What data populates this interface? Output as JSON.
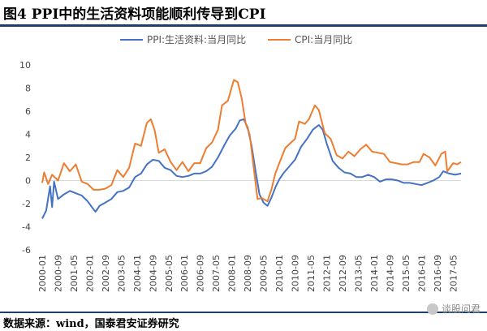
{
  "header": {
    "title": "图4   PPI中的生活资料项能顺利传导到CPI"
  },
  "footer": {
    "source": "数据来源：wind，国泰君安证券研究",
    "watermark": "谈股问君"
  },
  "colors": {
    "ppi": "#4472c4",
    "cpi": "#ed7d31",
    "rule": "#1f3f6b"
  },
  "chart_data": {
    "type": "line",
    "title": "",
    "xlabel": "",
    "ylabel": "",
    "ylim": [
      -6,
      10
    ],
    "yticks": [
      -6,
      -4,
      -2,
      0,
      2,
      4,
      6,
      8,
      10
    ],
    "xlim": [
      "2000-01",
      "2017-09"
    ],
    "xticks": [
      "2000-01",
      "2000-09",
      "2001-05",
      "2002-01",
      "2002-09",
      "2003-05",
      "2004-01",
      "2004-09",
      "2005-05",
      "2006-01",
      "2006-09",
      "2007-05",
      "2008-01",
      "2008-09",
      "2009-05",
      "2010-01",
      "2010-09",
      "2011-05",
      "2012-01",
      "2012-09",
      "2013-05",
      "2014-01",
      "2014-09",
      "2015-05",
      "2016-01",
      "2016-09",
      "2017-05"
    ],
    "legend": "top",
    "grid": false,
    "series": [
      {
        "name": "PPI:生活资料:当月同比",
        "color": "#4472c4",
        "points": [
          [
            "2000-01",
            -3.3
          ],
          [
            "2000-03",
            -2.6
          ],
          [
            "2000-05",
            -0.5
          ],
          [
            "2000-06",
            -2.3
          ],
          [
            "2000-07",
            -0.1
          ],
          [
            "2000-09",
            -1.6
          ],
          [
            "2000-12",
            -1.2
          ],
          [
            "2001-03",
            -0.9
          ],
          [
            "2001-06",
            -1.1
          ],
          [
            "2001-09",
            -1.3
          ],
          [
            "2001-12",
            -1.8
          ],
          [
            "2002-03",
            -2.5
          ],
          [
            "2002-04",
            -2.7
          ],
          [
            "2002-06",
            -2.2
          ],
          [
            "2002-09",
            -1.9
          ],
          [
            "2002-12",
            -1.6
          ],
          [
            "2003-03",
            -1.0
          ],
          [
            "2003-06",
            -0.9
          ],
          [
            "2003-09",
            -0.6
          ],
          [
            "2003-12",
            0.3
          ],
          [
            "2004-03",
            0.6
          ],
          [
            "2004-06",
            1.4
          ],
          [
            "2004-09",
            1.8
          ],
          [
            "2004-12",
            1.7
          ],
          [
            "2005-03",
            1.1
          ],
          [
            "2005-06",
            0.9
          ],
          [
            "2005-09",
            0.4
          ],
          [
            "2005-12",
            0.3
          ],
          [
            "2006-03",
            0.4
          ],
          [
            "2006-06",
            0.6
          ],
          [
            "2006-09",
            0.6
          ],
          [
            "2006-12",
            0.8
          ],
          [
            "2007-03",
            1.2
          ],
          [
            "2007-06",
            2.0
          ],
          [
            "2007-09",
            3.0
          ],
          [
            "2007-12",
            3.9
          ],
          [
            "2008-03",
            4.5
          ],
          [
            "2008-05",
            5.2
          ],
          [
            "2008-07",
            5.3
          ],
          [
            "2008-09",
            4.6
          ],
          [
            "2008-11",
            3.0
          ],
          [
            "2009-01",
            0.8
          ],
          [
            "2009-03",
            -1.2
          ],
          [
            "2009-05",
            -1.9
          ],
          [
            "2009-07",
            -2.2
          ],
          [
            "2009-09",
            -1.5
          ],
          [
            "2009-11",
            -0.6
          ],
          [
            "2010-01",
            0.1
          ],
          [
            "2010-03",
            0.6
          ],
          [
            "2010-06",
            1.2
          ],
          [
            "2010-09",
            1.8
          ],
          [
            "2010-12",
            2.9
          ],
          [
            "2011-03",
            3.6
          ],
          [
            "2011-06",
            4.4
          ],
          [
            "2011-09",
            4.8
          ],
          [
            "2011-11",
            4.4
          ],
          [
            "2012-01",
            3.2
          ],
          [
            "2012-04",
            1.7
          ],
          [
            "2012-07",
            1.1
          ],
          [
            "2012-10",
            0.7
          ],
          [
            "2013-01",
            0.6
          ],
          [
            "2013-04",
            0.3
          ],
          [
            "2013-07",
            0.3
          ],
          [
            "2013-10",
            0.5
          ],
          [
            "2014-01",
            0.3
          ],
          [
            "2014-04",
            -0.1
          ],
          [
            "2014-07",
            0.1
          ],
          [
            "2014-10",
            0.1
          ],
          [
            "2015-01",
            0.0
          ],
          [
            "2015-04",
            -0.2
          ],
          [
            "2015-07",
            -0.2
          ],
          [
            "2015-10",
            -0.3
          ],
          [
            "2016-01",
            -0.4
          ],
          [
            "2016-04",
            -0.2
          ],
          [
            "2016-07",
            0.0
          ],
          [
            "2016-10",
            0.3
          ],
          [
            "2016-12",
            0.8
          ],
          [
            "2017-03",
            0.6
          ],
          [
            "2017-06",
            0.5
          ],
          [
            "2017-09",
            0.6
          ]
        ]
      },
      {
        "name": "CPI:当月同比",
        "color": "#ed7d31",
        "points": [
          [
            "2000-01",
            -0.2
          ],
          [
            "2000-02",
            0.7
          ],
          [
            "2000-04",
            -0.3
          ],
          [
            "2000-06",
            0.5
          ],
          [
            "2000-09",
            0.0
          ],
          [
            "2000-12",
            1.5
          ],
          [
            "2001-03",
            0.8
          ],
          [
            "2001-06",
            1.4
          ],
          [
            "2001-09",
            -0.1
          ],
          [
            "2001-12",
            -0.3
          ],
          [
            "2002-03",
            -0.8
          ],
          [
            "2002-06",
            -0.8
          ],
          [
            "2002-09",
            -0.7
          ],
          [
            "2002-12",
            -0.4
          ],
          [
            "2003-03",
            0.9
          ],
          [
            "2003-06",
            0.3
          ],
          [
            "2003-09",
            1.1
          ],
          [
            "2003-12",
            3.2
          ],
          [
            "2004-03",
            3.0
          ],
          [
            "2004-06",
            5.0
          ],
          [
            "2004-08",
            5.3
          ],
          [
            "2004-10",
            4.3
          ],
          [
            "2004-12",
            2.4
          ],
          [
            "2005-03",
            2.7
          ],
          [
            "2005-06",
            1.6
          ],
          [
            "2005-09",
            0.9
          ],
          [
            "2005-12",
            1.6
          ],
          [
            "2006-03",
            0.8
          ],
          [
            "2006-06",
            1.5
          ],
          [
            "2006-09",
            1.5
          ],
          [
            "2006-12",
            2.8
          ],
          [
            "2007-03",
            3.3
          ],
          [
            "2007-06",
            4.4
          ],
          [
            "2007-08",
            6.5
          ],
          [
            "2007-11",
            6.9
          ],
          [
            "2008-02",
            8.7
          ],
          [
            "2008-04",
            8.5
          ],
          [
            "2008-06",
            7.1
          ],
          [
            "2008-08",
            4.9
          ],
          [
            "2008-10",
            4.0
          ],
          [
            "2008-12",
            1.2
          ],
          [
            "2009-02",
            -1.6
          ],
          [
            "2009-04",
            -1.5
          ],
          [
            "2009-07",
            -1.8
          ],
          [
            "2009-09",
            -0.8
          ],
          [
            "2009-11",
            0.6
          ],
          [
            "2010-01",
            1.5
          ],
          [
            "2010-04",
            2.8
          ],
          [
            "2010-07",
            3.3
          ],
          [
            "2010-09",
            3.6
          ],
          [
            "2010-11",
            5.1
          ],
          [
            "2011-02",
            4.9
          ],
          [
            "2011-04",
            5.3
          ],
          [
            "2011-07",
            6.5
          ],
          [
            "2011-09",
            6.1
          ],
          [
            "2011-12",
            4.1
          ],
          [
            "2012-03",
            3.6
          ],
          [
            "2012-06",
            2.2
          ],
          [
            "2012-09",
            1.9
          ],
          [
            "2012-12",
            2.5
          ],
          [
            "2013-03",
            2.1
          ],
          [
            "2013-06",
            2.7
          ],
          [
            "2013-09",
            3.1
          ],
          [
            "2013-12",
            2.5
          ],
          [
            "2014-03",
            2.4
          ],
          [
            "2014-06",
            2.3
          ],
          [
            "2014-09",
            1.6
          ],
          [
            "2014-12",
            1.5
          ],
          [
            "2015-03",
            1.4
          ],
          [
            "2015-06",
            1.4
          ],
          [
            "2015-09",
            1.6
          ],
          [
            "2015-12",
            1.6
          ],
          [
            "2016-02",
            2.3
          ],
          [
            "2016-05",
            2.0
          ],
          [
            "2016-08",
            1.3
          ],
          [
            "2016-11",
            2.3
          ],
          [
            "2017-01",
            2.5
          ],
          [
            "2017-02",
            0.8
          ],
          [
            "2017-05",
            1.5
          ],
          [
            "2017-07",
            1.4
          ],
          [
            "2017-09",
            1.6
          ]
        ]
      }
    ]
  }
}
